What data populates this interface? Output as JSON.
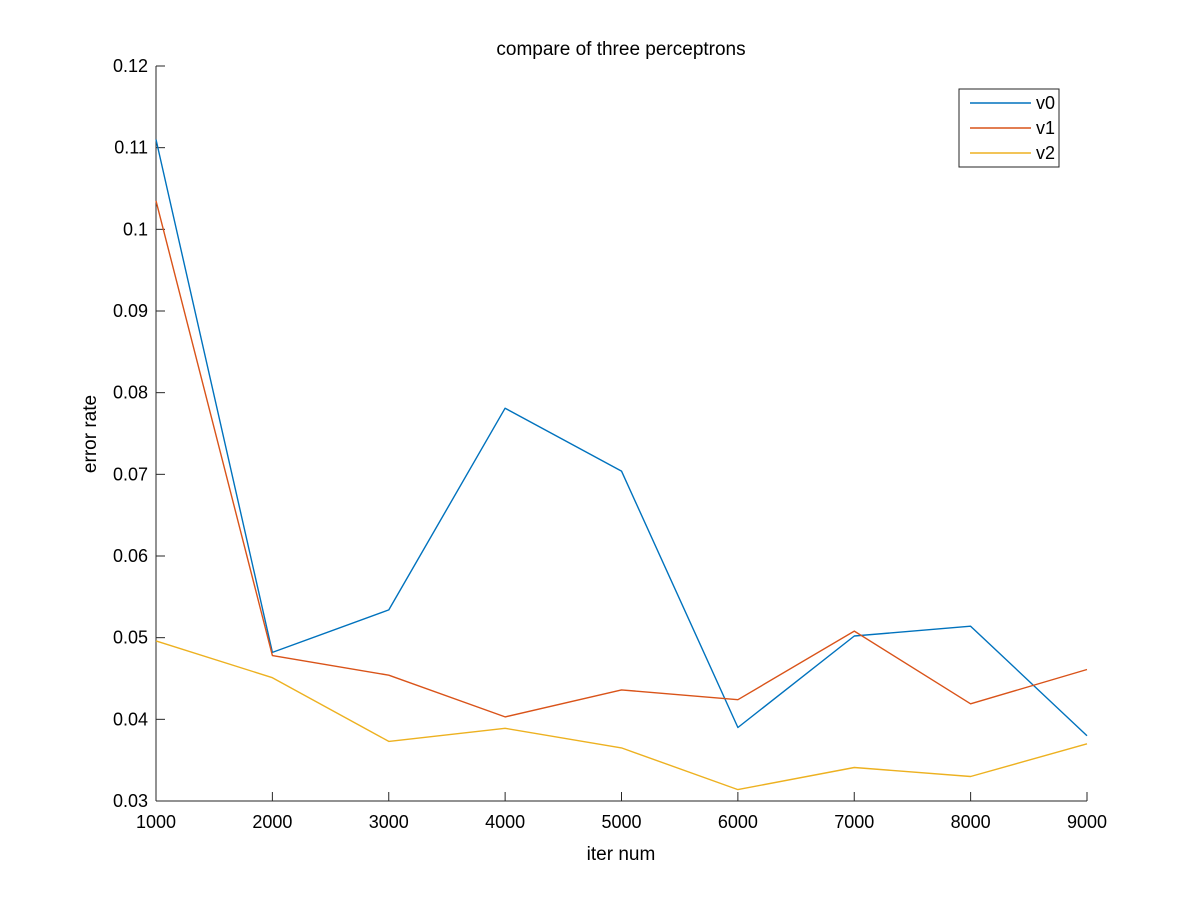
{
  "chart_data": {
    "type": "line",
    "title": "compare of three perceptrons",
    "xlabel": "iter num",
    "ylabel": "error rate",
    "x": [
      1000,
      2000,
      3000,
      4000,
      5000,
      6000,
      7000,
      8000,
      9000
    ],
    "xlim": [
      1000,
      9000
    ],
    "ylim": [
      0.03,
      0.12
    ],
    "xticks": [
      1000,
      2000,
      3000,
      4000,
      5000,
      6000,
      7000,
      8000,
      9000
    ],
    "xtick_labels": [
      "1000",
      "2000",
      "3000",
      "4000",
      "5000",
      "6000",
      "7000",
      "8000",
      "9000"
    ],
    "yticks": [
      0.03,
      0.04,
      0.05,
      0.06,
      0.07,
      0.08,
      0.09,
      0.1,
      0.11,
      0.12
    ],
    "ytick_labels": [
      "0.03",
      "0.04",
      "0.05",
      "0.06",
      "0.07",
      "0.08",
      "0.09",
      "0.1",
      "0.11",
      "0.12"
    ],
    "grid": false,
    "legend_position": "top-right",
    "series": [
      {
        "name": "v0",
        "color": "#0072BD",
        "values": [
          0.111,
          0.0482,
          0.0534,
          0.0781,
          0.0704,
          0.039,
          0.0502,
          0.0514,
          0.038
        ]
      },
      {
        "name": "v1",
        "color": "#D95319",
        "values": [
          0.1035,
          0.0478,
          0.0454,
          0.0403,
          0.0436,
          0.0424,
          0.0508,
          0.0419,
          0.0461
        ]
      },
      {
        "name": "v2",
        "color": "#EDB120",
        "values": [
          0.0496,
          0.0451,
          0.0373,
          0.0389,
          0.0365,
          0.0314,
          0.0341,
          0.033,
          0.037
        ]
      }
    ]
  }
}
